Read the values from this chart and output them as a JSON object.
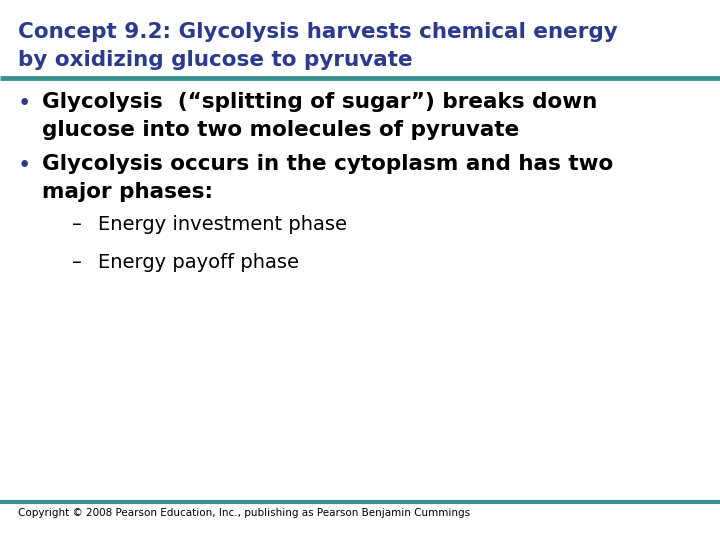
{
  "title_line1": "Concept 9.2: Glycolysis harvests chemical energy",
  "title_line2": "by oxidizing glucose to pyruvate",
  "title_color": "#2B3A8C",
  "teal_color": "#3A9090",
  "bullet_color": "#2B3A8C",
  "body_color": "#000000",
  "bg_color": "#FFFFFF",
  "copyright": "Copyright © 2008 Pearson Education, Inc., publishing as Pearson Benjamin Cummings",
  "bullet1_line1": "Glycolysis  (“splitting of sugar”) breaks down",
  "bullet1_line2": "glucose into two molecules of pyruvate",
  "bullet2_line1": "Glycolysis occurs in the cytoplasm and has two",
  "bullet2_line2": "major phases:",
  "sub1": "Energy investment phase",
  "sub2": "Energy payoff phase",
  "title_fontsize": 15.5,
  "body_fontsize": 15.5,
  "sub_fontsize": 14,
  "copyright_fontsize": 7.5
}
